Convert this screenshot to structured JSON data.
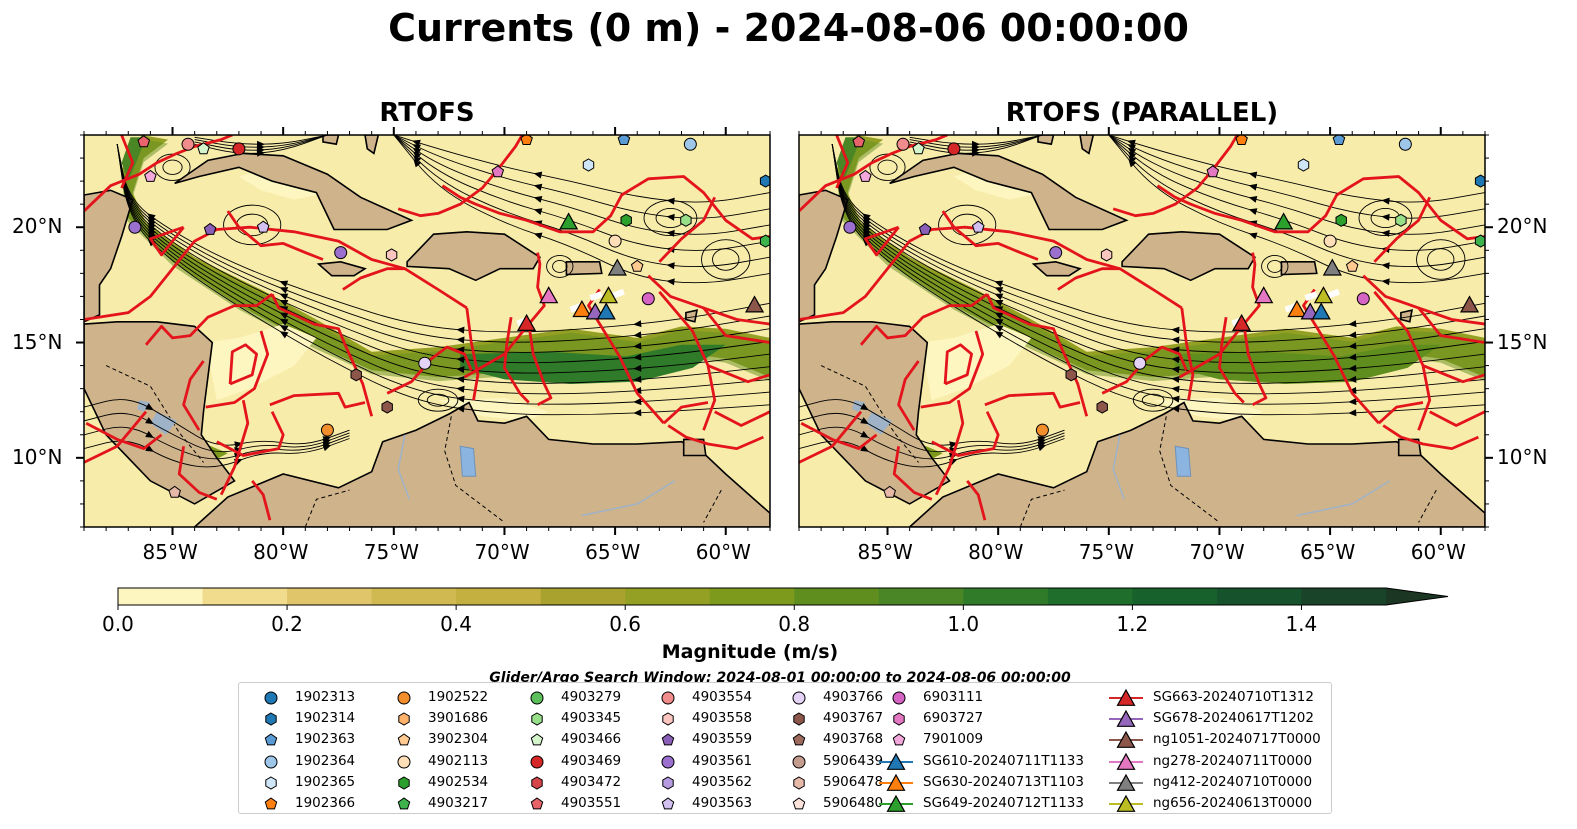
{
  "title": "Currents (0 m) - 2024-08-06 00:00:00",
  "panels": [
    {
      "title": "RTOFS"
    },
    {
      "title": "RTOFS (PARALLEL)"
    }
  ],
  "map": {
    "extent": {
      "lon": [
        -89,
        -58
      ],
      "lat": [
        7,
        24
      ]
    },
    "lon_ticks": [
      "85°W",
      "80°W",
      "75°W",
      "70°W",
      "65°W",
      "60°W"
    ],
    "lon_tick_values": [
      -85,
      -80,
      -75,
      -70,
      -65,
      -60
    ],
    "lat_ticks": [
      "20°N",
      "15°N",
      "10°N"
    ],
    "lat_tick_values": [
      20,
      15,
      10
    ],
    "colors": {
      "land": "#cfb38b",
      "coast": "#000000",
      "eez": "#e4141c",
      "water_low": "#fbf3b9",
      "river": "#9fb3c8",
      "lake": "#8cb4e0"
    }
  },
  "colorbar": {
    "label": "Magnitude (m/s)",
    "ticks": [
      "0.0",
      "0.2",
      "0.4",
      "0.6",
      "0.8",
      "1.0",
      "1.2",
      "1.4"
    ],
    "tick_values": [
      0.0,
      0.2,
      0.4,
      0.6,
      0.8,
      1.0,
      1.2,
      1.4
    ],
    "range": [
      0,
      1.5
    ],
    "extend": "max",
    "colors": [
      "#fdf6c0",
      "#f0dc8c",
      "#e1c56b",
      "#d0b951",
      "#c3b040",
      "#a9a22e",
      "#94a023",
      "#7d9a1d",
      "#5f8e1f",
      "#4a8625",
      "#2f7b2a",
      "#1f6e2c",
      "#17612d",
      "#16532c",
      "#1a4429",
      "#1b3622"
    ]
  },
  "search_window": "Glider/Argo Search Window: 2024-08-01 00:00:00 to 2024-08-06 00:00:00",
  "legend": {
    "columns": [
      [
        {
          "label": "1902313",
          "marker": "circle",
          "color": "#1f77b4"
        },
        {
          "label": "1902314",
          "marker": "hexagon",
          "color": "#1f77b4"
        },
        {
          "label": "1902363",
          "marker": "pentagon",
          "color": "#5a9bd5"
        },
        {
          "label": "1902364",
          "marker": "circle",
          "color": "#9dc6e8"
        },
        {
          "label": "1902365",
          "marker": "hexagon",
          "color": "#cfe6f7"
        },
        {
          "label": "1902366",
          "marker": "pentagon",
          "color": "#ff7f0e"
        }
      ],
      [
        {
          "label": "1902522",
          "marker": "circle",
          "color": "#f28e2b"
        },
        {
          "label": "3901686",
          "marker": "hexagon",
          "color": "#ffb26b"
        },
        {
          "label": "3902304",
          "marker": "pentagon",
          "color": "#ffc98f"
        },
        {
          "label": "4902113",
          "marker": "circle",
          "color": "#ffdfb8"
        },
        {
          "label": "4902534",
          "marker": "hexagon",
          "color": "#2ca02c"
        },
        {
          "label": "4903217",
          "marker": "pentagon",
          "color": "#3cb44b"
        }
      ],
      [
        {
          "label": "4903279",
          "marker": "circle",
          "color": "#5cbf5c"
        },
        {
          "label": "4903345",
          "marker": "hexagon",
          "color": "#98df8a"
        },
        {
          "label": "4903466",
          "marker": "pentagon",
          "color": "#d4f5cc"
        },
        {
          "label": "4903469",
          "marker": "circle",
          "color": "#d62728"
        },
        {
          "label": "4903472",
          "marker": "hexagon",
          "color": "#d6454a"
        },
        {
          "label": "4903551",
          "marker": "pentagon",
          "color": "#e8646a"
        }
      ],
      [
        {
          "label": "4903554",
          "marker": "circle",
          "color": "#f08c8c"
        },
        {
          "label": "4903558",
          "marker": "hexagon",
          "color": "#fcc6c0"
        },
        {
          "label": "4903559",
          "marker": "pentagon",
          "color": "#8a5fb8"
        },
        {
          "label": "4903561",
          "marker": "circle",
          "color": "#9b6fce"
        },
        {
          "label": "4903562",
          "marker": "hexagon",
          "color": "#b69be0"
        },
        {
          "label": "4903563",
          "marker": "pentagon",
          "color": "#d3c0f0"
        }
      ],
      [
        {
          "label": "4903766",
          "marker": "circle",
          "color": "#e5d3f7"
        },
        {
          "label": "4903767",
          "marker": "hexagon",
          "color": "#8c564b"
        },
        {
          "label": "4903768",
          "marker": "pentagon",
          "color": "#9c6b5d"
        },
        {
          "label": "5906439",
          "marker": "circle",
          "color": "#c49c8e"
        },
        {
          "label": "5906478",
          "marker": "hexagon",
          "color": "#e5b8a8"
        },
        {
          "label": "5906480",
          "marker": "pentagon",
          "color": "#fbe3dc"
        }
      ],
      [
        {
          "label": "6903111",
          "marker": "circle",
          "color": "#d564c4"
        },
        {
          "label": "6903727",
          "marker": "hexagon",
          "color": "#e377c2"
        },
        {
          "label": "7901009",
          "marker": "pentagon",
          "color": "#f3a8dc"
        },
        {
          "label": "SG610-20240711T1133",
          "marker": "triangle",
          "color": "#1f77b4"
        },
        {
          "label": "SG630-20240713T1103",
          "marker": "triangle",
          "color": "#ff7f0e"
        },
        {
          "label": "SG649-20240712T1133",
          "marker": "triangle",
          "color": "#2ca02c"
        }
      ],
      [
        {
          "label": "SG663-20240710T1312",
          "marker": "triangle",
          "color": "#d62728"
        },
        {
          "label": "SG678-20240617T1202",
          "marker": "triangle",
          "color": "#9467bd"
        },
        {
          "label": "ng1051-20240717T0000",
          "marker": "triangle",
          "color": "#8c564b"
        },
        {
          "label": "ng278-20240711T0000",
          "marker": "triangle",
          "color": "#e377c2"
        },
        {
          "label": "ng412-20240710T0000",
          "marker": "triangle",
          "color": "#7f7f7f"
        },
        {
          "label": "ng656-20240613T0000",
          "marker": "triangle",
          "color": "#bcbd22"
        }
      ]
    ]
  },
  "markers": [
    {
      "lon": -86.3,
      "lat": 23.7,
      "marker": "pentagon",
      "color": "#e8646a"
    },
    {
      "lon": -84.3,
      "lat": 23.6,
      "marker": "circle",
      "color": "#f08c8c"
    },
    {
      "lon": -83.6,
      "lat": 23.4,
      "marker": "pentagon",
      "color": "#d4f5cc"
    },
    {
      "lon": -82.0,
      "lat": 23.4,
      "marker": "circle",
      "color": "#d62728"
    },
    {
      "lon": -86.0,
      "lat": 22.2,
      "marker": "pentagon",
      "color": "#f3a8dc"
    },
    {
      "lon": -86.7,
      "lat": 20.0,
      "marker": "circle",
      "color": "#9b6fce"
    },
    {
      "lon": -83.3,
      "lat": 19.9,
      "marker": "pentagon",
      "color": "#8a5fb8"
    },
    {
      "lon": -80.9,
      "lat": 20.0,
      "marker": "pentagon",
      "color": "#d3c0f0"
    },
    {
      "lon": -77.4,
      "lat": 18.9,
      "marker": "circle",
      "color": "#9b6fce"
    },
    {
      "lon": -75.1,
      "lat": 18.8,
      "marker": "hexagon",
      "color": "#fcc6c0"
    },
    {
      "lon": -69.0,
      "lat": 23.8,
      "marker": "pentagon",
      "color": "#ff7f0e"
    },
    {
      "lon": -70.3,
      "lat": 22.4,
      "marker": "pentagon",
      "color": "#e377c2"
    },
    {
      "lon": -64.6,
      "lat": 23.8,
      "marker": "pentagon",
      "color": "#5a9bd5"
    },
    {
      "lon": -66.2,
      "lat": 22.7,
      "marker": "hexagon",
      "color": "#cfe6f7"
    },
    {
      "lon": -61.6,
      "lat": 23.6,
      "marker": "circle",
      "color": "#9dc6e8"
    },
    {
      "lon": -58.2,
      "lat": 22.0,
      "marker": "hexagon",
      "color": "#1f77b4"
    },
    {
      "lon": -64.5,
      "lat": 20.3,
      "marker": "hexagon",
      "color": "#2ca02c"
    },
    {
      "lon": -61.8,
      "lat": 20.3,
      "marker": "hexagon",
      "color": "#98df8a"
    },
    {
      "lon": -58.2,
      "lat": 19.4,
      "marker": "hexagon",
      "color": "#3cb44b"
    },
    {
      "lon": -65.0,
      "lat": 19.4,
      "marker": "circle",
      "color": "#ffdfb8"
    },
    {
      "lon": -64.0,
      "lat": 18.3,
      "marker": "pentagon",
      "color": "#ffc98f"
    },
    {
      "lon": -63.5,
      "lat": 16.9,
      "marker": "circle",
      "color": "#d564c4"
    },
    {
      "lon": -73.6,
      "lat": 14.1,
      "marker": "circle",
      "color": "#e5d3f7"
    },
    {
      "lon": -76.7,
      "lat": 13.6,
      "marker": "hexagon",
      "color": "#8c564b"
    },
    {
      "lon": -75.3,
      "lat": 12.2,
      "marker": "hexagon",
      "color": "#8c564b"
    },
    {
      "lon": -78.0,
      "lat": 11.2,
      "marker": "circle",
      "color": "#f28e2b"
    },
    {
      "lon": -84.9,
      "lat": 8.5,
      "marker": "pentagon",
      "color": "#e5b8a8"
    },
    {
      "lon": -67.1,
      "lat": 20.2,
      "marker": "triangle",
      "color": "#2ca02c"
    },
    {
      "lon": -68.0,
      "lat": 17.0,
      "marker": "triangle",
      "color": "#e377c2"
    },
    {
      "lon": -64.9,
      "lat": 18.2,
      "marker": "triangle",
      "color": "#7f7f7f"
    },
    {
      "lon": -69.0,
      "lat": 15.8,
      "marker": "triangle",
      "color": "#d62728"
    },
    {
      "lon": -66.5,
      "lat": 16.4,
      "marker": "triangle",
      "color": "#ff7f0e"
    },
    {
      "lon": -65.9,
      "lat": 16.3,
      "marker": "triangle",
      "color": "#9467bd"
    },
    {
      "lon": -65.4,
      "lat": 16.3,
      "marker": "triangle",
      "color": "#1f77b4"
    },
    {
      "lon": -65.3,
      "lat": 17.0,
      "marker": "triangle",
      "color": "#bcbd22"
    },
    {
      "lon": -58.7,
      "lat": 16.6,
      "marker": "triangle",
      "color": "#8c564b"
    }
  ]
}
